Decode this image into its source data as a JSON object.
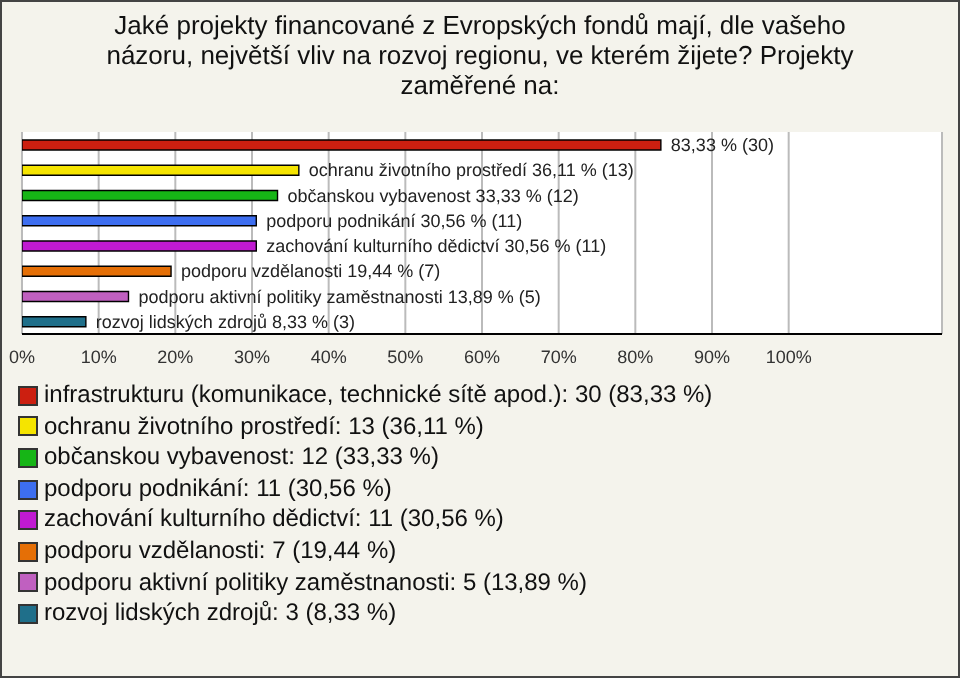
{
  "chart_data": {
    "type": "bar",
    "title": "Jaké projekty financované z Evropských fondů mají, dle vašeho názoru, největší vliv na rozvoj regionu, ve kterém žijete? Projekty zaměřené na:",
    "orientation": "horizontal",
    "categories": [
      null,
      null,
      null,
      null,
      null,
      null,
      null,
      null
    ],
    "series": [
      {
        "name": "infrastrukturu (komunikace, technické sítě apod.): 30 (83,33 %)",
        "color": "#cc1f10",
        "values": [
          83.33,
          null,
          null,
          null,
          null,
          null,
          null,
          null
        ],
        "value_labels": [
          "83,33 % (30)",
          null,
          null,
          null,
          null,
          null,
          null,
          null
        ]
      },
      {
        "name": "ochranu životního prostředí: 13 (36,11 %)",
        "color": "#f5e400",
        "values": [
          null,
          36.11,
          null,
          null,
          null,
          null,
          null,
          null
        ],
        "value_labels": [
          null,
          "ochranu životního prostředí 36,11 % (13)",
          null,
          null,
          null,
          null,
          null,
          null
        ]
      },
      {
        "name": "občanskou vybavenost: 12 (33,33 %)",
        "color": "#16b516",
        "values": [
          null,
          null,
          33.33,
          null,
          null,
          null,
          null,
          null
        ],
        "value_labels": [
          null,
          null,
          "občanskou vybavenost 33,33 % (12)",
          null,
          null,
          null,
          null,
          null
        ]
      },
      {
        "name": "podporu podnikání: 11 (30,56 %)",
        "color": "#3d6ef0",
        "values": [
          null,
          null,
          null,
          30.56,
          null,
          null,
          null,
          null
        ],
        "value_labels": [
          null,
          null,
          null,
          "podporu podnikání 30,56 % (11)",
          null,
          null,
          null,
          null
        ]
      },
      {
        "name": "zachování kulturního dědictví: 11 (30,56 %)",
        "color": "#c01ad2",
        "values": [
          null,
          null,
          null,
          null,
          30.56,
          null,
          null,
          null
        ],
        "value_labels": [
          null,
          null,
          null,
          null,
          "zachování kulturního dědictví 30,56 % (11)",
          null,
          null,
          null
        ]
      },
      {
        "name": "podporu vzdělanosti: 7 (19,44 %)",
        "color": "#e56f06",
        "values": [
          null,
          null,
          null,
          null,
          null,
          19.44,
          null,
          null
        ],
        "value_labels": [
          null,
          null,
          null,
          null,
          null,
          "podporu vzdělanosti 19,44 % (7)",
          null,
          null
        ]
      },
      {
        "name": "podporu aktivní politiky zaměstnanosti: 5 (13,89 %)",
        "color": "#c060c0",
        "values": [
          null,
          null,
          null,
          null,
          null,
          null,
          13.89,
          null
        ],
        "value_labels": [
          null,
          null,
          null,
          null,
          null,
          null,
          "podporu aktivní politiky zaměstnanosti 13,89 % (5)",
          null
        ]
      },
      {
        "name": "rozvoj lidských zdrojů: 3 (8,33 %)",
        "color": "#1f6f8a",
        "values": [
          null,
          null,
          null,
          null,
          null,
          null,
          null,
          8.33
        ],
        "value_labels": [
          null,
          null,
          null,
          null,
          null,
          null,
          null,
          "rozvoj lidských zdrojů 8,33 % (3)"
        ]
      }
    ],
    "xlim": [
      0,
      120
    ],
    "xticks": [
      {
        "value": 0,
        "label": "0%"
      },
      {
        "value": 10,
        "label": "10%"
      },
      {
        "value": 20,
        "label": "20%"
      },
      {
        "value": 30,
        "label": "30%"
      },
      {
        "value": 40,
        "label": "40%"
      },
      {
        "value": 50,
        "label": "50%"
      },
      {
        "value": 60,
        "label": "60%"
      },
      {
        "value": 70,
        "label": "70%"
      },
      {
        "value": 80,
        "label": "80%"
      },
      {
        "value": 90,
        "label": "90%"
      },
      {
        "value": 100,
        "label": "100%"
      }
    ],
    "grid": "x",
    "legend": "bottom"
  }
}
